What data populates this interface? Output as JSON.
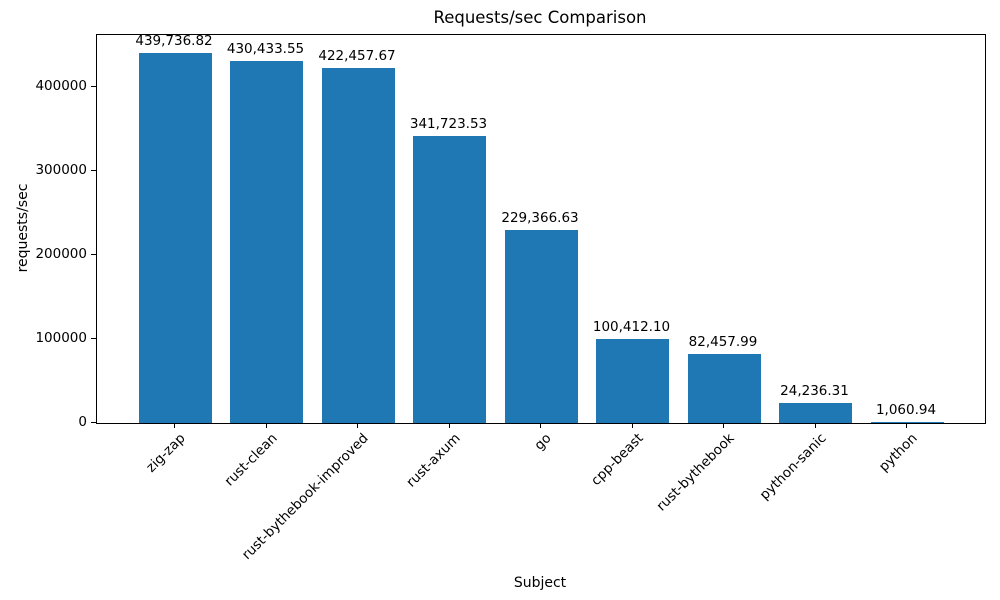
{
  "chart_data": {
    "type": "bar",
    "title": "Requests/sec Comparison",
    "xlabel": "Subject",
    "ylabel": "requests/sec",
    "categories": [
      "zig-zap",
      "rust-clean",
      "rust-bythebook-improved",
      "rust-axum",
      "go",
      "cpp-beast",
      "rust-bythebook",
      "python-sanic",
      "python"
    ],
    "values": [
      439736.82,
      430433.55,
      422457.67,
      341723.53,
      229366.63,
      100412.1,
      82457.99,
      24236.31,
      1060.94
    ],
    "bar_labels": [
      "439,736.82",
      "430,433.55",
      "422,457.67",
      "341,723.53",
      "229,366.63",
      "100,412.10",
      "82,457.99",
      "24,236.31",
      "1,060.94"
    ],
    "yticks": [
      0,
      100000,
      200000,
      300000,
      400000
    ],
    "ytick_labels": [
      "0",
      "100000",
      "200000",
      "300000",
      "400000"
    ],
    "ylim": [
      0,
      461724
    ],
    "bar_color": "#1f77b4",
    "grid": false,
    "legend": "none"
  }
}
